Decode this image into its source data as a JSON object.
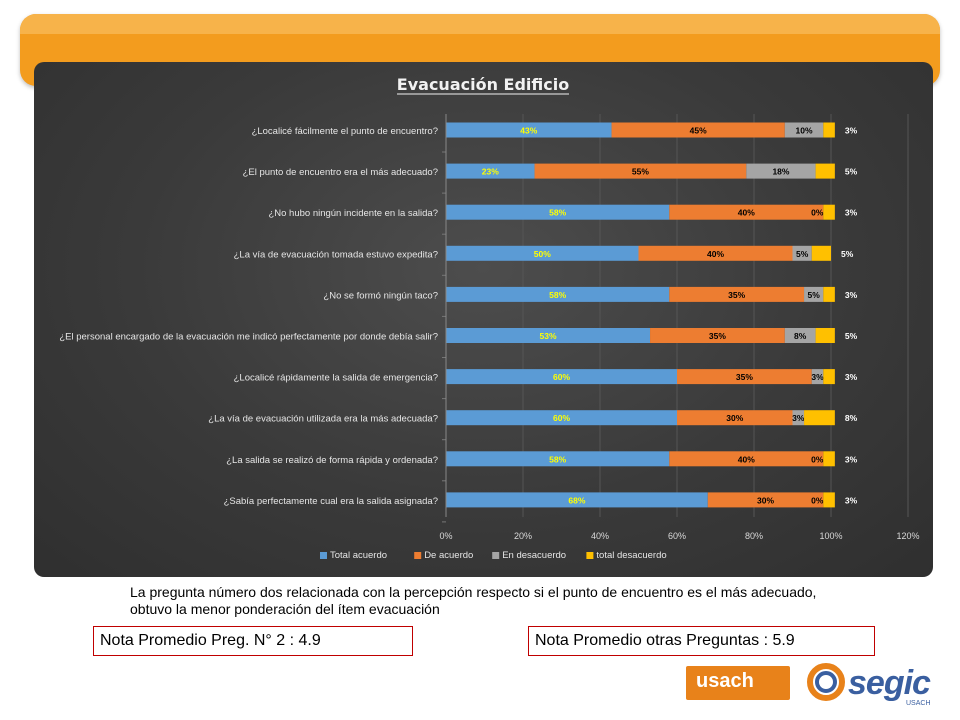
{
  "chart_data": {
    "type": "bar",
    "orientation": "horizontal",
    "stacked": true,
    "title": "Evacuación Edificio",
    "categories": [
      "¿Localicé fácilmente el punto de encuentro?",
      "¿El punto de encuentro era el más adecuado?",
      "¿No hubo ningún incidente en la salida?",
      "¿La vía de evacuación tomada estuvo expedita?",
      "¿No se formó ningún taco?",
      "¿El personal encargado de la evacuación me indicó perfectamente por donde debía salir?",
      "¿Localicé rápidamente la salida de emergencia?",
      "¿La vía de evacuación utilizada era la más adecuada?",
      "¿La salida se realizó de forma rápida y ordenada?",
      "¿Sabía perfectamente cual era la salida asignada?"
    ],
    "series": [
      {
        "name": "Total acuerdo",
        "color": "#5b9bd5",
        "labelColor": "#ffff00",
        "values": [
          43,
          23,
          58,
          50,
          58,
          53,
          60,
          60,
          58,
          68
        ]
      },
      {
        "name": "De acuerdo",
        "color": "#ed7d31",
        "labelColor": "#000000",
        "values": [
          45,
          55,
          40,
          40,
          35,
          35,
          35,
          30,
          40,
          30
        ]
      },
      {
        "name": "En desacuerdo",
        "color": "#a5a5a5",
        "labelColor": "#000000",
        "values": [
          10,
          18,
          0,
          5,
          5,
          8,
          3,
          3,
          0,
          0
        ]
      },
      {
        "name": "total desacuerdo",
        "color": "#ffc000",
        "labelColor": "#ffffff",
        "values": [
          3,
          5,
          3,
          5,
          3,
          5,
          3,
          8,
          3,
          3
        ]
      }
    ],
    "xlim": [
      0,
      120
    ],
    "xticks": [
      "0%",
      "20%",
      "40%",
      "60%",
      "80%",
      "100%",
      "120%"
    ],
    "xgrid": true,
    "legend_position": "bottom"
  },
  "caption": "La pregunta número dos relacionada con la percepción respecto si el punto de encuentro es el más adecuado, obtuvo la menor ponderación del ítem evacuación",
  "notes": {
    "left": "Nota Promedio Preg. N° 2 : 4.9",
    "right": "Nota Promedio otras Preguntas : 5.9"
  },
  "logos": {
    "usach": "usach",
    "segic": "segic",
    "segic_sub": "USACH"
  }
}
